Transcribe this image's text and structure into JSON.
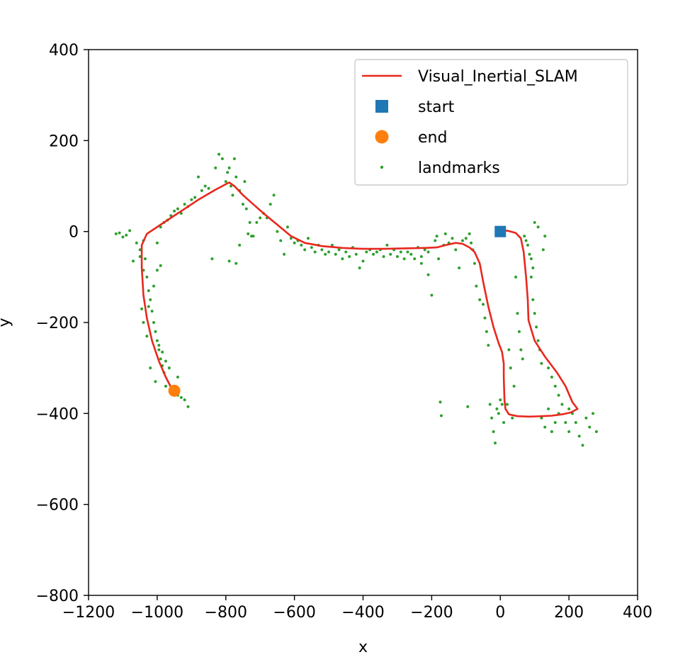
{
  "chart_data": {
    "type": "line",
    "title": "",
    "xlabel": "x",
    "ylabel": "y",
    "xlim": [
      -1200,
      400
    ],
    "ylim": [
      -800,
      400
    ],
    "xticks": [
      -1200,
      -1000,
      -800,
      -600,
      -400,
      -200,
      0,
      200,
      400
    ],
    "yticks": [
      -800,
      -600,
      -400,
      -200,
      0,
      200,
      400
    ],
    "xtick_labels": [
      "−1200",
      "−1000",
      "−800",
      "−600",
      "−400",
      "−200",
      "0",
      "200",
      "400"
    ],
    "ytick_labels": [
      "−800",
      "−600",
      "−400",
      "−200",
      "0",
      "200",
      "400"
    ],
    "grid": false,
    "legend_position": "top-right",
    "legend": [
      {
        "label": "Visual_Inertial_SLAM",
        "kind": "line",
        "color": "#e8281e"
      },
      {
        "label": "start",
        "kind": "square",
        "color": "#1f77b4"
      },
      {
        "label": "end",
        "kind": "circle",
        "color": "#ff7f0e"
      },
      {
        "label": "landmarks",
        "kind": "dot",
        "color": "#2ca02c"
      }
    ],
    "series": [
      {
        "name": "Visual_Inertial_SLAM",
        "type": "line",
        "color": "#e8281e",
        "points": [
          [
            0,
            0
          ],
          [
            20,
            2
          ],
          [
            45,
            -3
          ],
          [
            60,
            -15
          ],
          [
            68,
            -45
          ],
          [
            75,
            -100
          ],
          [
            80,
            -150
          ],
          [
            82,
            -195
          ],
          [
            100,
            -240
          ],
          [
            130,
            -275
          ],
          [
            165,
            -310
          ],
          [
            190,
            -340
          ],
          [
            210,
            -375
          ],
          [
            225,
            -390
          ],
          [
            205,
            -398
          ],
          [
            180,
            -402
          ],
          [
            150,
            -405
          ],
          [
            120,
            -406
          ],
          [
            85,
            -407
          ],
          [
            50,
            -406
          ],
          [
            25,
            -402
          ],
          [
            15,
            -390
          ],
          [
            12,
            -370
          ],
          [
            10,
            -320
          ],
          [
            10,
            -290
          ],
          [
            5,
            -265
          ],
          [
            -5,
            -245
          ],
          [
            -20,
            -210
          ],
          [
            -35,
            -165
          ],
          [
            -50,
            -110
          ],
          [
            -60,
            -70
          ],
          [
            -75,
            -45
          ],
          [
            -90,
            -35
          ],
          [
            -110,
            -27
          ],
          [
            -130,
            -25
          ],
          [
            -160,
            -30
          ],
          [
            -185,
            -35
          ],
          [
            -220,
            -36
          ],
          [
            -280,
            -37
          ],
          [
            -340,
            -38
          ],
          [
            -400,
            -38
          ],
          [
            -460,
            -36
          ],
          [
            -520,
            -32
          ],
          [
            -570,
            -25
          ],
          [
            -610,
            -10
          ],
          [
            -650,
            15
          ],
          [
            -690,
            40
          ],
          [
            -720,
            60
          ],
          [
            -750,
            80
          ],
          [
            -775,
            100
          ],
          [
            -790,
            108
          ],
          [
            -800,
            104
          ],
          [
            -830,
            92
          ],
          [
            -880,
            70
          ],
          [
            -930,
            45
          ],
          [
            -990,
            15
          ],
          [
            -1030,
            -5
          ],
          [
            -1045,
            -30
          ],
          [
            -1045,
            -80
          ],
          [
            -1040,
            -140
          ],
          [
            -1030,
            -190
          ],
          [
            -1015,
            -240
          ],
          [
            -995,
            -285
          ],
          [
            -975,
            -320
          ],
          [
            -958,
            -345
          ],
          [
            -950,
            -350
          ]
        ]
      },
      {
        "name": "start",
        "type": "scatter",
        "marker": "square",
        "color": "#1f77b4",
        "x": [
          0
        ],
        "y": [
          0
        ]
      },
      {
        "name": "end",
        "type": "scatter",
        "marker": "circle",
        "color": "#ff7f0e",
        "x": [
          -950
        ],
        "y": [
          -350
        ]
      },
      {
        "name": "landmarks",
        "type": "scatter",
        "marker": "dot",
        "color": "#2ca02c",
        "points": [
          [
            -1120,
            -5
          ],
          [
            -1110,
            -3
          ],
          [
            -1100,
            -12
          ],
          [
            -1090,
            -8
          ],
          [
            -1080,
            2
          ],
          [
            -1070,
            -65
          ],
          [
            -1060,
            -25
          ],
          [
            -1050,
            -40
          ],
          [
            -1040,
            -20
          ],
          [
            -1035,
            -60
          ],
          [
            -1030,
            -100
          ],
          [
            -1025,
            -130
          ],
          [
            -1020,
            -150
          ],
          [
            -1015,
            -175
          ],
          [
            -1010,
            -200
          ],
          [
            -1005,
            -220
          ],
          [
            -1000,
            -240
          ],
          [
            -995,
            -260
          ],
          [
            -990,
            -280
          ],
          [
            -985,
            -295
          ],
          [
            -980,
            -310
          ],
          [
            -1005,
            -330
          ],
          [
            -1020,
            -300
          ],
          [
            -1030,
            -230
          ],
          [
            -1040,
            -200
          ],
          [
            -1045,
            -170
          ],
          [
            -1010,
            -120
          ],
          [
            -1000,
            -85
          ],
          [
            -990,
            -75
          ],
          [
            -975,
            -340
          ],
          [
            -960,
            -355
          ],
          [
            -950,
            -345
          ],
          [
            -940,
            -360
          ],
          [
            -930,
            -365
          ],
          [
            -920,
            -370
          ],
          [
            -910,
            -385
          ],
          [
            -940,
            -320
          ],
          [
            -965,
            -300
          ],
          [
            -1050,
            -55
          ],
          [
            -1040,
            -85
          ],
          [
            -1025,
            -165
          ],
          [
            -995,
            -250
          ],
          [
            -985,
            -265
          ],
          [
            -975,
            -285
          ],
          [
            -1000,
            -25
          ],
          [
            -990,
            10
          ],
          [
            -980,
            20
          ],
          [
            -970,
            25
          ],
          [
            -960,
            35
          ],
          [
            -950,
            45
          ],
          [
            -940,
            50
          ],
          [
            -930,
            40
          ],
          [
            -920,
            60
          ],
          [
            -910,
            55
          ],
          [
            -900,
            70
          ],
          [
            -890,
            75
          ],
          [
            -880,
            120
          ],
          [
            -870,
            90
          ],
          [
            -860,
            100
          ],
          [
            -850,
            95
          ],
          [
            -840,
            -60
          ],
          [
            -830,
            140
          ],
          [
            -820,
            170
          ],
          [
            -810,
            160
          ],
          [
            -800,
            110
          ],
          [
            -795,
            130
          ],
          [
            -790,
            140
          ],
          [
            -785,
            100
          ],
          [
            -780,
            80
          ],
          [
            -775,
            160
          ],
          [
            -770,
            120
          ],
          [
            -760,
            90
          ],
          [
            -750,
            60
          ],
          [
            -745,
            110
          ],
          [
            -740,
            50
          ],
          [
            -735,
            -5
          ],
          [
            -730,
            20
          ],
          [
            -725,
            -10
          ],
          [
            -720,
            -10
          ],
          [
            -710,
            20
          ],
          [
            -700,
            30
          ],
          [
            -690,
            40
          ],
          [
            -680,
            30
          ],
          [
            -670,
            60
          ],
          [
            -660,
            80
          ],
          [
            -650,
            0
          ],
          [
            -640,
            -20
          ],
          [
            -630,
            -50
          ],
          [
            -620,
            10
          ],
          [
            -610,
            -15
          ],
          [
            -600,
            -25
          ],
          [
            -590,
            -20
          ],
          [
            -580,
            -30
          ],
          [
            -570,
            -40
          ],
          [
            -560,
            -15
          ],
          [
            -550,
            -35
          ],
          [
            -540,
            -45
          ],
          [
            -530,
            -30
          ],
          [
            -520,
            -40
          ],
          [
            -510,
            -50
          ],
          [
            -500,
            -45
          ],
          [
            -490,
            -30
          ],
          [
            -480,
            -50
          ],
          [
            -470,
            -40
          ],
          [
            -460,
            -60
          ],
          [
            -450,
            -45
          ],
          [
            -440,
            -55
          ],
          [
            -430,
            -35
          ],
          [
            -420,
            -50
          ],
          [
            -410,
            -80
          ],
          [
            -400,
            -65
          ],
          [
            -390,
            -45
          ],
          [
            -380,
            -40
          ],
          [
            -370,
            -50
          ],
          [
            -360,
            -45
          ],
          [
            -350,
            -40
          ],
          [
            -340,
            -55
          ],
          [
            -330,
            -30
          ],
          [
            -320,
            -50
          ],
          [
            -310,
            -40
          ],
          [
            -300,
            -55
          ],
          [
            -290,
            -45
          ],
          [
            -280,
            -60
          ],
          [
            -270,
            -45
          ],
          [
            -260,
            -50
          ],
          [
            -250,
            -60
          ],
          [
            -240,
            -35
          ],
          [
            -230,
            -55
          ],
          [
            -220,
            -40
          ],
          [
            -210,
            -45
          ],
          [
            -200,
            -140
          ],
          [
            -190,
            -20
          ],
          [
            -185,
            -10
          ],
          [
            -180,
            -60
          ],
          [
            -175,
            -375
          ],
          [
            -172,
            -405
          ],
          [
            -165,
            -30
          ],
          [
            -160,
            -5
          ],
          [
            -150,
            -25
          ],
          [
            -140,
            -15
          ],
          [
            -130,
            -40
          ],
          [
            -120,
            -80
          ],
          [
            -110,
            -20
          ],
          [
            -100,
            -15
          ],
          [
            -95,
            -385
          ],
          [
            -90,
            -5
          ],
          [
            -85,
            -25
          ],
          [
            -80,
            -40
          ],
          [
            -75,
            -70
          ],
          [
            -70,
            -120
          ],
          [
            -60,
            -150
          ],
          [
            -50,
            -160
          ],
          [
            -45,
            -190
          ],
          [
            -40,
            -220
          ],
          [
            -35,
            -250
          ],
          [
            -30,
            -380
          ],
          [
            -25,
            -410
          ],
          [
            -20,
            -440
          ],
          [
            -15,
            -465
          ],
          [
            -10,
            -390
          ],
          [
            -5,
            -400
          ],
          [
            0,
            -370
          ],
          [
            5,
            -380
          ],
          [
            10,
            -420
          ],
          [
            20,
            -380
          ],
          [
            25,
            -260
          ],
          [
            30,
            -300
          ],
          [
            35,
            -410
          ],
          [
            40,
            -340
          ],
          [
            45,
            -100
          ],
          [
            50,
            -180
          ],
          [
            55,
            -220
          ],
          [
            60,
            -260
          ],
          [
            65,
            -280
          ],
          [
            70,
            -10
          ],
          [
            75,
            -20
          ],
          [
            80,
            -30
          ],
          [
            85,
            -50
          ],
          [
            90,
            -100
          ],
          [
            95,
            -150
          ],
          [
            100,
            -180
          ],
          [
            105,
            -210
          ],
          [
            110,
            -240
          ],
          [
            115,
            -260
          ],
          [
            120,
            -290
          ],
          [
            125,
            -40
          ],
          [
            130,
            -10
          ],
          [
            140,
            -300
          ],
          [
            150,
            -320
          ],
          [
            160,
            -340
          ],
          [
            170,
            -360
          ],
          [
            180,
            -380
          ],
          [
            190,
            -420
          ],
          [
            200,
            -440
          ],
          [
            210,
            -400
          ],
          [
            220,
            -420
          ],
          [
            230,
            -450
          ],
          [
            240,
            -470
          ],
          [
            250,
            -410
          ],
          [
            260,
            -430
          ],
          [
            270,
            -400
          ],
          [
            280,
            -440
          ],
          [
            100,
            20
          ],
          [
            110,
            10
          ],
          [
            90,
            -60
          ],
          [
            95,
            -80
          ],
          [
            120,
            -410
          ],
          [
            130,
            -430
          ],
          [
            140,
            -390
          ],
          [
            160,
            -420
          ],
          [
            170,
            -400
          ],
          [
            200,
            -390
          ],
          [
            150,
            -440
          ],
          [
            -210,
            -95
          ],
          [
            -230,
            -70
          ],
          [
            -760,
            -30
          ],
          [
            -790,
            -65
          ],
          [
            -770,
            -70
          ]
        ]
      }
    ]
  }
}
